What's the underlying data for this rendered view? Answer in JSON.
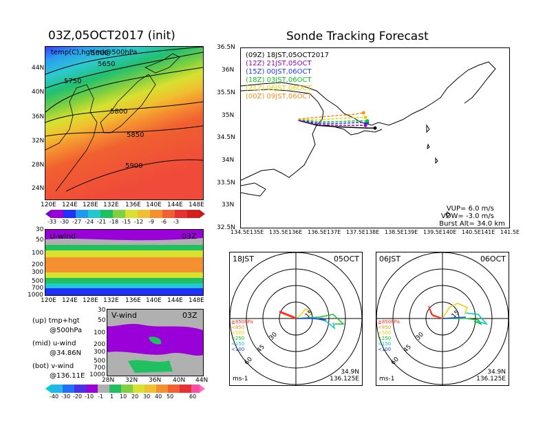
{
  "left": {
    "title": "03Z,05OCT2017 (init)",
    "top_panel": {
      "label": "temp(C),hgt(m)@500hPa",
      "lat_ticks": [
        "44N",
        "40N",
        "36N",
        "32N",
        "28N",
        "24N"
      ],
      "lon_ticks": [
        "120E",
        "124E",
        "128E",
        "132E",
        "136E",
        "140E",
        "144E",
        "148E"
      ],
      "contour_labels": [
        "5600",
        "5650",
        "5750",
        "5800",
        "5850",
        "5900"
      ],
      "colorbar_labels": [
        "-33",
        "-30",
        "-27",
        "-24",
        "-21",
        "-18",
        "-15",
        "-12",
        "-9",
        "-6",
        "-3"
      ]
    },
    "mid_panel": {
      "label": "U-wind",
      "time": "03Z",
      "p_ticks": [
        "30",
        "50",
        "100",
        "200",
        "300",
        "500",
        "700",
        "1000"
      ],
      "lon_ticks": [
        "120E",
        "124E",
        "128E",
        "132E",
        "136E",
        "140E",
        "144E",
        "148E"
      ]
    },
    "bot_panel": {
      "label": "V-wind",
      "time": "03Z",
      "p_ticks": [
        "30",
        "50",
        "100",
        "200",
        "300",
        "500",
        "700",
        "1000"
      ],
      "lat_ticks": [
        "28N",
        "32N",
        "36N",
        "40N",
        "44N"
      ],
      "colorbar_labels": [
        "-40",
        "-30",
        "-20",
        "-10",
        "-1",
        "1",
        "10",
        "20",
        "30",
        "40",
        "50",
        "60"
      ]
    },
    "legend": [
      {
        "line1": "(up) tmp+hgt",
        "line2": "@500hPa"
      },
      {
        "line1": "(mid) u-wind",
        "line2": "@34.86N"
      },
      {
        "line1": "(bot) v-wind",
        "line2": "@136.11E"
      }
    ]
  },
  "right": {
    "title": "Sonde Tracking Forecast",
    "lat_ticks": [
      "36.5N",
      "36N",
      "35.5N",
      "35N",
      "34.5N",
      "34N",
      "33.5N",
      "33N",
      "32.5N"
    ],
    "lon_ticks": [
      "134.5E",
      "135E",
      "135.5E",
      "136E",
      "136.5E",
      "137E",
      "137.5E",
      "138E",
      "138.5E",
      "139E",
      "139.5E",
      "140E",
      "140.5E",
      "141E",
      "141.5E"
    ],
    "legend": [
      {
        "text": "(09Z)  18JST,05OCT2017",
        "color": "#000000"
      },
      {
        "text": "(12Z)  21JST,05OCT",
        "color": "#9a00c8"
      },
      {
        "text": "(15Z)  00JST,06OCT",
        "color": "#1e3cff"
      },
      {
        "text": "(18Z)  03JST,06OCT",
        "color": "#10c020"
      },
      {
        "text": "(21Z)  06JST,06OCT",
        "color": "#e6d200"
      },
      {
        "text": "(00Z)  09JST,06OCT",
        "color": "#ff8c1e"
      }
    ],
    "params": {
      "vup": "VUP=  6.0  m/s",
      "vdw": "VDW= -3.0  m/s",
      "burst": "Burst Alt=  34.0  km"
    }
  },
  "hodographs": [
    {
      "time": "18JST",
      "date": "05OCT",
      "lat": "34.9N",
      "lon": "136.125E",
      "unit": "ms-1"
    },
    {
      "time": "06JST",
      "date": "06OCT",
      "lat": "34.9N",
      "lon": "136.125E",
      "unit": "ms-1"
    }
  ],
  "hodo_rings": [
    "15",
    "30",
    "45",
    "60"
  ],
  "hodo_levels": [
    {
      "label": "≧850hPa",
      "color": "#ff3020"
    },
    {
      "label": "<850",
      "color": "#ff8c1e"
    },
    {
      "label": "<500",
      "color": "#e6d200"
    },
    {
      "label": "<250",
      "color": "#10c020"
    },
    {
      "label": "<150",
      "color": "#00c8c8"
    },
    {
      "label": "<100",
      "color": "#1e3cff"
    }
  ],
  "chart_data": {
    "type": "line",
    "title": "Sonde Tracking Forecast",
    "x_label": "",
    "y_label": "",
    "xlim": [
      134.5,
      141.5
    ],
    "ylim": [
      32.5,
      36.5
    ],
    "series": [
      {
        "name": "(09Z) 18JST,05OCT2017",
        "color": "#000000",
        "x": [
          136.0,
          136.5,
          137.0,
          137.5,
          137.8,
          138.0
        ],
        "y": [
          34.89,
          34.78,
          34.75,
          34.73,
          34.72,
          34.72
        ]
      },
      {
        "name": "(12Z) 21JST,05OCT",
        "color": "#9a00c8",
        "x": [
          136.0,
          136.5,
          137.0,
          137.5,
          137.75
        ],
        "y": [
          34.89,
          34.8,
          34.78,
          34.78,
          34.78
        ]
      },
      {
        "name": "(15Z) 00JST,06OCT",
        "color": "#1e3cff",
        "x": [
          136.0,
          136.5,
          137.0,
          137.5,
          137.8
        ],
        "y": [
          34.9,
          34.83,
          34.82,
          34.84,
          34.84
        ]
      },
      {
        "name": "(18Z) 03JST,06OCT",
        "color": "#10c020",
        "x": [
          136.0,
          136.5,
          137.0,
          137.5,
          137.8
        ],
        "y": [
          34.91,
          34.86,
          34.86,
          34.88,
          34.88
        ]
      },
      {
        "name": "(21Z) 06JST,06OCT",
        "color": "#e6d200",
        "x": [
          136.0,
          136.5,
          137.0,
          137.5,
          137.75
        ],
        "y": [
          34.92,
          34.9,
          34.93,
          34.95,
          34.96
        ]
      },
      {
        "name": "(00Z) 09JST,06OCT",
        "color": "#ff8c1e",
        "x": [
          136.0,
          136.5,
          137.0,
          137.4,
          137.7
        ],
        "y": [
          34.92,
          34.96,
          35.0,
          35.02,
          35.06
        ]
      }
    ]
  }
}
